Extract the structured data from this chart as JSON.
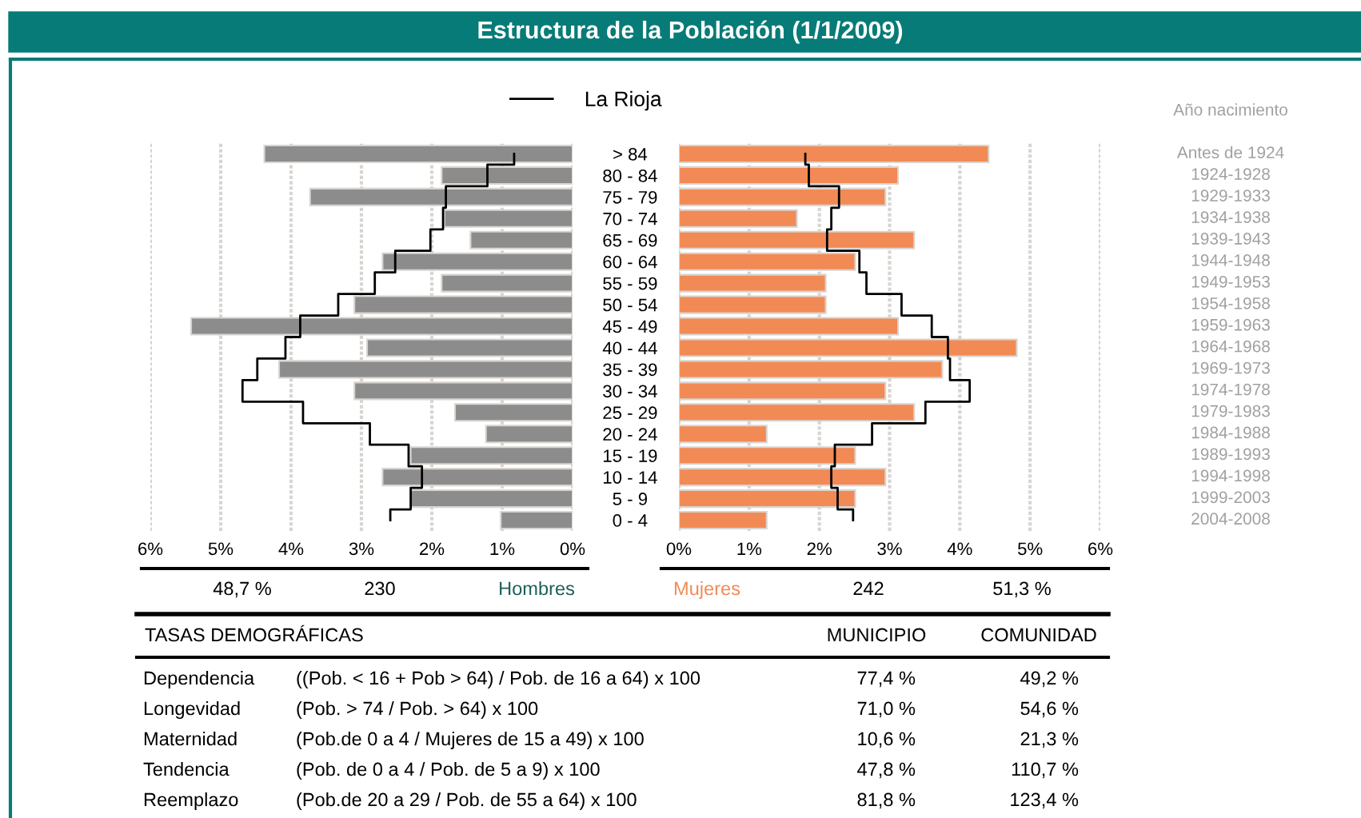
{
  "chart_data": [
    {
      "type": "bar",
      "orientation": "horizontal",
      "title": "Estructura de la Población (1/1/2009)",
      "xlabel": "Hombres",
      "categories": [
        "> 84",
        "80 - 84",
        "75 - 79",
        "70 - 74",
        "65 - 69",
        "60 - 64",
        "55 - 59",
        "50 - 54",
        "45 - 49",
        "40 - 44",
        "35 - 39",
        "30 - 34",
        "25 - 29",
        "20 - 24",
        "15 - 19",
        "10 - 14",
        "5 - 9",
        "0 - 4"
      ],
      "series": [
        {
          "color": "#8c8c8c",
          "values": [
            4.38,
            1.86,
            3.73,
            1.82,
            1.45,
            2.7,
            1.86,
            3.1,
            5.42,
            2.92,
            4.17,
            3.1,
            1.67,
            1.23,
            2.3,
            2.7,
            2.3,
            1.02
          ]
        },
        {
          "name": "La Rioja",
          "type": "step",
          "color": "#000000",
          "values": [
            0.83,
            1.21,
            1.8,
            1.84,
            2.02,
            2.52,
            2.81,
            3.33,
            3.87,
            4.08,
            4.48,
            4.69,
            3.83,
            2.88,
            2.33,
            2.14,
            2.3,
            2.59
          ]
        }
      ],
      "xlim": [
        6,
        0
      ],
      "xticks": [
        {
          "value": 6,
          "label": "6%"
        },
        {
          "value": 5,
          "label": "5%"
        },
        {
          "value": 4,
          "label": "4%"
        },
        {
          "value": 3,
          "label": "3%"
        },
        {
          "value": 2,
          "label": "2%"
        },
        {
          "value": 1,
          "label": "1%"
        },
        {
          "value": 0,
          "label": "0%"
        }
      ],
      "grid": "x",
      "legend": "top",
      "tick_labels": "x",
      "annotations": [
        "48,7 %",
        "230",
        "TASAS DEMOGRÁFICAS",
        "MUNICIPIO",
        "COMUNIDAD",
        "Dependencia",
        "((Pob. < 16 + Pob > 64) / Pob. de 16 a 64) x 100",
        "77,4 %",
        "49,2 %",
        "Longevidad",
        "(Pob. > 74 / Pob. > 64) x 100",
        "71,0 %",
        "54,6 %",
        "Maternidad",
        "(Pob.de 0 a 4 / Mujeres de 15 a 49) x 100",
        "10,6 %",
        "21,3 %",
        "Tendencia",
        "(Pob. de 0 a 4 / Pob. de 5 a 9) x 100",
        "47,8 %",
        "110,7 %",
        "Reemplazo",
        "(Pob.de 20 a 29 / Pob. de 55 a 64) x 100",
        "81,8 %",
        "123,4 %"
      ]
    },
    {
      "type": "bar",
      "orientation": "horizontal",
      "xlabel": "Mujeres",
      "y2label": "Año nacimiento",
      "categories": [
        "> 84",
        "80 - 84",
        "75 - 79",
        "70 - 74",
        "65 - 69",
        "60 - 64",
        "55 - 59",
        "50 - 54",
        "45 - 49",
        "40 - 44",
        "35 - 39",
        "30 - 34",
        "25 - 29",
        "20 - 24",
        "15 - 19",
        "10 - 14",
        "5 - 9",
        "0 - 4"
      ],
      "series": [
        {
          "color": "#f28a55",
          "values": [
            4.41,
            3.12,
            2.94,
            1.68,
            3.35,
            2.51,
            2.09,
            2.09,
            3.12,
            4.81,
            3.75,
            2.94,
            3.35,
            1.25,
            2.51,
            2.94,
            2.51,
            1.25
          ]
        },
        {
          "name": "La Rioja",
          "type": "step",
          "color": "#000000",
          "values": [
            1.8,
            1.85,
            2.28,
            2.17,
            2.11,
            2.57,
            2.67,
            3.17,
            3.6,
            3.83,
            3.86,
            4.14,
            3.51,
            2.75,
            2.22,
            2.17,
            2.26,
            2.48
          ]
        }
      ],
      "xlim": [
        0,
        6
      ],
      "xticks": [
        {
          "value": 0,
          "label": "0%"
        },
        {
          "value": 1,
          "label": "1%"
        },
        {
          "value": 2,
          "label": "2%"
        },
        {
          "value": 3,
          "label": "3%"
        },
        {
          "value": 4,
          "label": "4%"
        },
        {
          "value": 5,
          "label": "5%"
        },
        {
          "value": 6,
          "label": "6%"
        }
      ],
      "grid": "x",
      "annotations": [
        "242",
        "51,3 %",
        "Antes de 1924",
        "1924-1928",
        "1929-1933",
        "1934-1938",
        "1939-1943",
        "1944-1948",
        "1949-1953",
        "1954-1958",
        "1959-1963",
        "1964-1968",
        "1969-1973",
        "1974-1978",
        "1979-1983",
        "1984-1988",
        "1989-1993",
        "1994-1998",
        "1999-2003",
        "2004-2008"
      ]
    }
  ]
}
